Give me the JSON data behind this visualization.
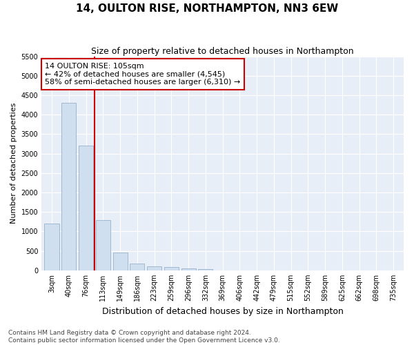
{
  "title": "14, OULTON RISE, NORTHAMPTON, NN3 6EW",
  "subtitle": "Size of property relative to detached houses in Northampton",
  "xlabel": "Distribution of detached houses by size in Northampton",
  "ylabel": "Number of detached properties",
  "bar_color": "#d0dff0",
  "bar_edge_color": "#a0b8d0",
  "background_color": "#e8eef7",
  "grid_color": "#ffffff",
  "fig_background": "#ffffff",
  "annotation_box_edgecolor": "#cc0000",
  "vline_color": "#cc0000",
  "annotation_text": "14 OULTON RISE: 105sqm\n← 42% of detached houses are smaller (4,545)\n58% of semi-detached houses are larger (6,310) →",
  "categories": [
    "3sqm",
    "40sqm",
    "76sqm",
    "113sqm",
    "149sqm",
    "186sqm",
    "223sqm",
    "259sqm",
    "296sqm",
    "332sqm",
    "369sqm",
    "406sqm",
    "442sqm",
    "479sqm",
    "515sqm",
    "552sqm",
    "589sqm",
    "625sqm",
    "662sqm",
    "698sqm",
    "735sqm"
  ],
  "values": [
    1200,
    4300,
    3200,
    1300,
    450,
    175,
    100,
    80,
    55,
    40,
    0,
    0,
    0,
    0,
    0,
    0,
    0,
    0,
    0,
    0,
    0
  ],
  "vline_x": 2.5,
  "ylim": [
    0,
    5500
  ],
  "yticks": [
    0,
    500,
    1000,
    1500,
    2000,
    2500,
    3000,
    3500,
    4000,
    4500,
    5000,
    5500
  ],
  "footer": "Contains HM Land Registry data © Crown copyright and database right 2024.\nContains public sector information licensed under the Open Government Licence v3.0.",
  "title_fontsize": 11,
  "subtitle_fontsize": 9,
  "xlabel_fontsize": 9,
  "ylabel_fontsize": 8,
  "tick_fontsize": 7,
  "annotation_fontsize": 8,
  "footer_fontsize": 6.5
}
